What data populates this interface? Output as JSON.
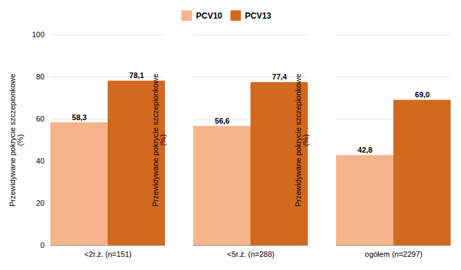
{
  "chart_data": {
    "type": "bar",
    "categories": [
      "<2r.ż. (n=151)",
      "<5r.ż. (n=288)",
      "ogółem (n=2297)"
    ],
    "series": [
      {
        "name": "PCV10",
        "color": "#F5B48A",
        "values": [
          58.3,
          56.6,
          42.8
        ],
        "value_labels": [
          "58,3",
          "56,6",
          "42,8"
        ]
      },
      {
        "name": "PCV13",
        "color": "#D2691E",
        "values": [
          78.1,
          77.4,
          69.0
        ],
        "value_labels": [
          "78,1",
          "77,4",
          "69,0"
        ]
      }
    ],
    "ylabel": "Przewidywane pokrycie szczepionkowe\n(%)",
    "ylim": [
      0,
      100
    ],
    "yticks": [
      0,
      20,
      40,
      60,
      80,
      100
    ],
    "grid": true,
    "legend": "top",
    "data_labels": true
  }
}
